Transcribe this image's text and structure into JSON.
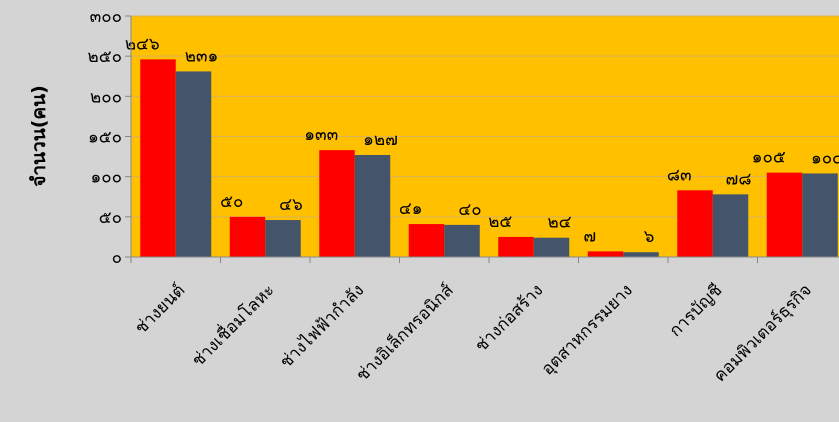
{
  "chart_data": {
    "type": "bar",
    "ylabel": "จำนวน(คน)",
    "ylim": [
      0,
      300
    ],
    "yticks": [
      {
        "value": 0,
        "label": "๐"
      },
      {
        "value": 50,
        "label": "๕๐"
      },
      {
        "value": 100,
        "label": "๑๐๐"
      },
      {
        "value": 150,
        "label": "๑๕๐"
      },
      {
        "value": 200,
        "label": "๒๐๐"
      },
      {
        "value": 250,
        "label": "๒๕๐"
      },
      {
        "value": 300,
        "label": "๓๐๐"
      }
    ],
    "categories": [
      "ช่างยนต์",
      "ช่างเชื่อมโลหะ",
      "ช่างไฟฟ้ากำลัง",
      "ช่างอิเล็กทรอนิกส์",
      "ช่างก่อสร้าง",
      "อุตสาหกรรมยาง",
      "การบัญชี",
      "คอมพิวเตอร์ธุรกิจ"
    ],
    "series": [
      {
        "values": [
          246,
          50,
          133,
          41,
          25,
          7,
          83,
          105
        ],
        "labels": [
          "๒๔๖",
          "๕๐",
          "๑๓๓",
          "๔๑",
          "๒๕",
          "๗",
          "๘๓",
          "๑๐๕"
        ],
        "color": "#ff0000"
      },
      {
        "values": [
          231,
          46,
          127,
          40,
          24,
          6,
          78,
          104
        ],
        "labels": [
          "๒๓๑",
          "๔๖",
          "๑๒๗",
          "๔๐",
          "๒๔",
          "๖",
          "๗๘",
          "๑๐๔"
        ],
        "color": "#44546a"
      }
    ],
    "plot_background": "#ffc000",
    "grid": false,
    "legend": "none"
  }
}
